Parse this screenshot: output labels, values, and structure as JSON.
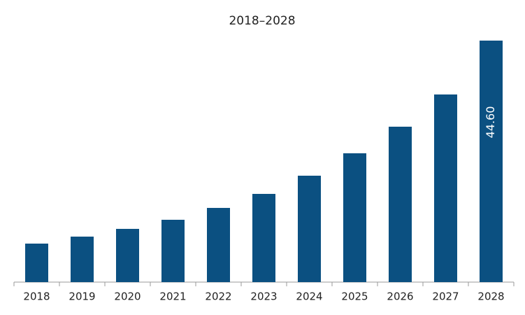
{
  "chart_data": {
    "type": "bar",
    "title": "2018–2028",
    "categories": [
      "2018",
      "2019",
      "2020",
      "2021",
      "2022",
      "2023",
      "2024",
      "2025",
      "2026",
      "2027",
      "2028"
    ],
    "values": [
      7.11,
      8.4,
      9.83,
      11.51,
      13.7,
      16.29,
      19.65,
      23.79,
      28.7,
      34.65,
      44.6
    ],
    "value_labels": [
      null,
      null,
      null,
      null,
      null,
      null,
      null,
      null,
      null,
      null,
      "44.60"
    ],
    "color": "#0b5081"
  }
}
